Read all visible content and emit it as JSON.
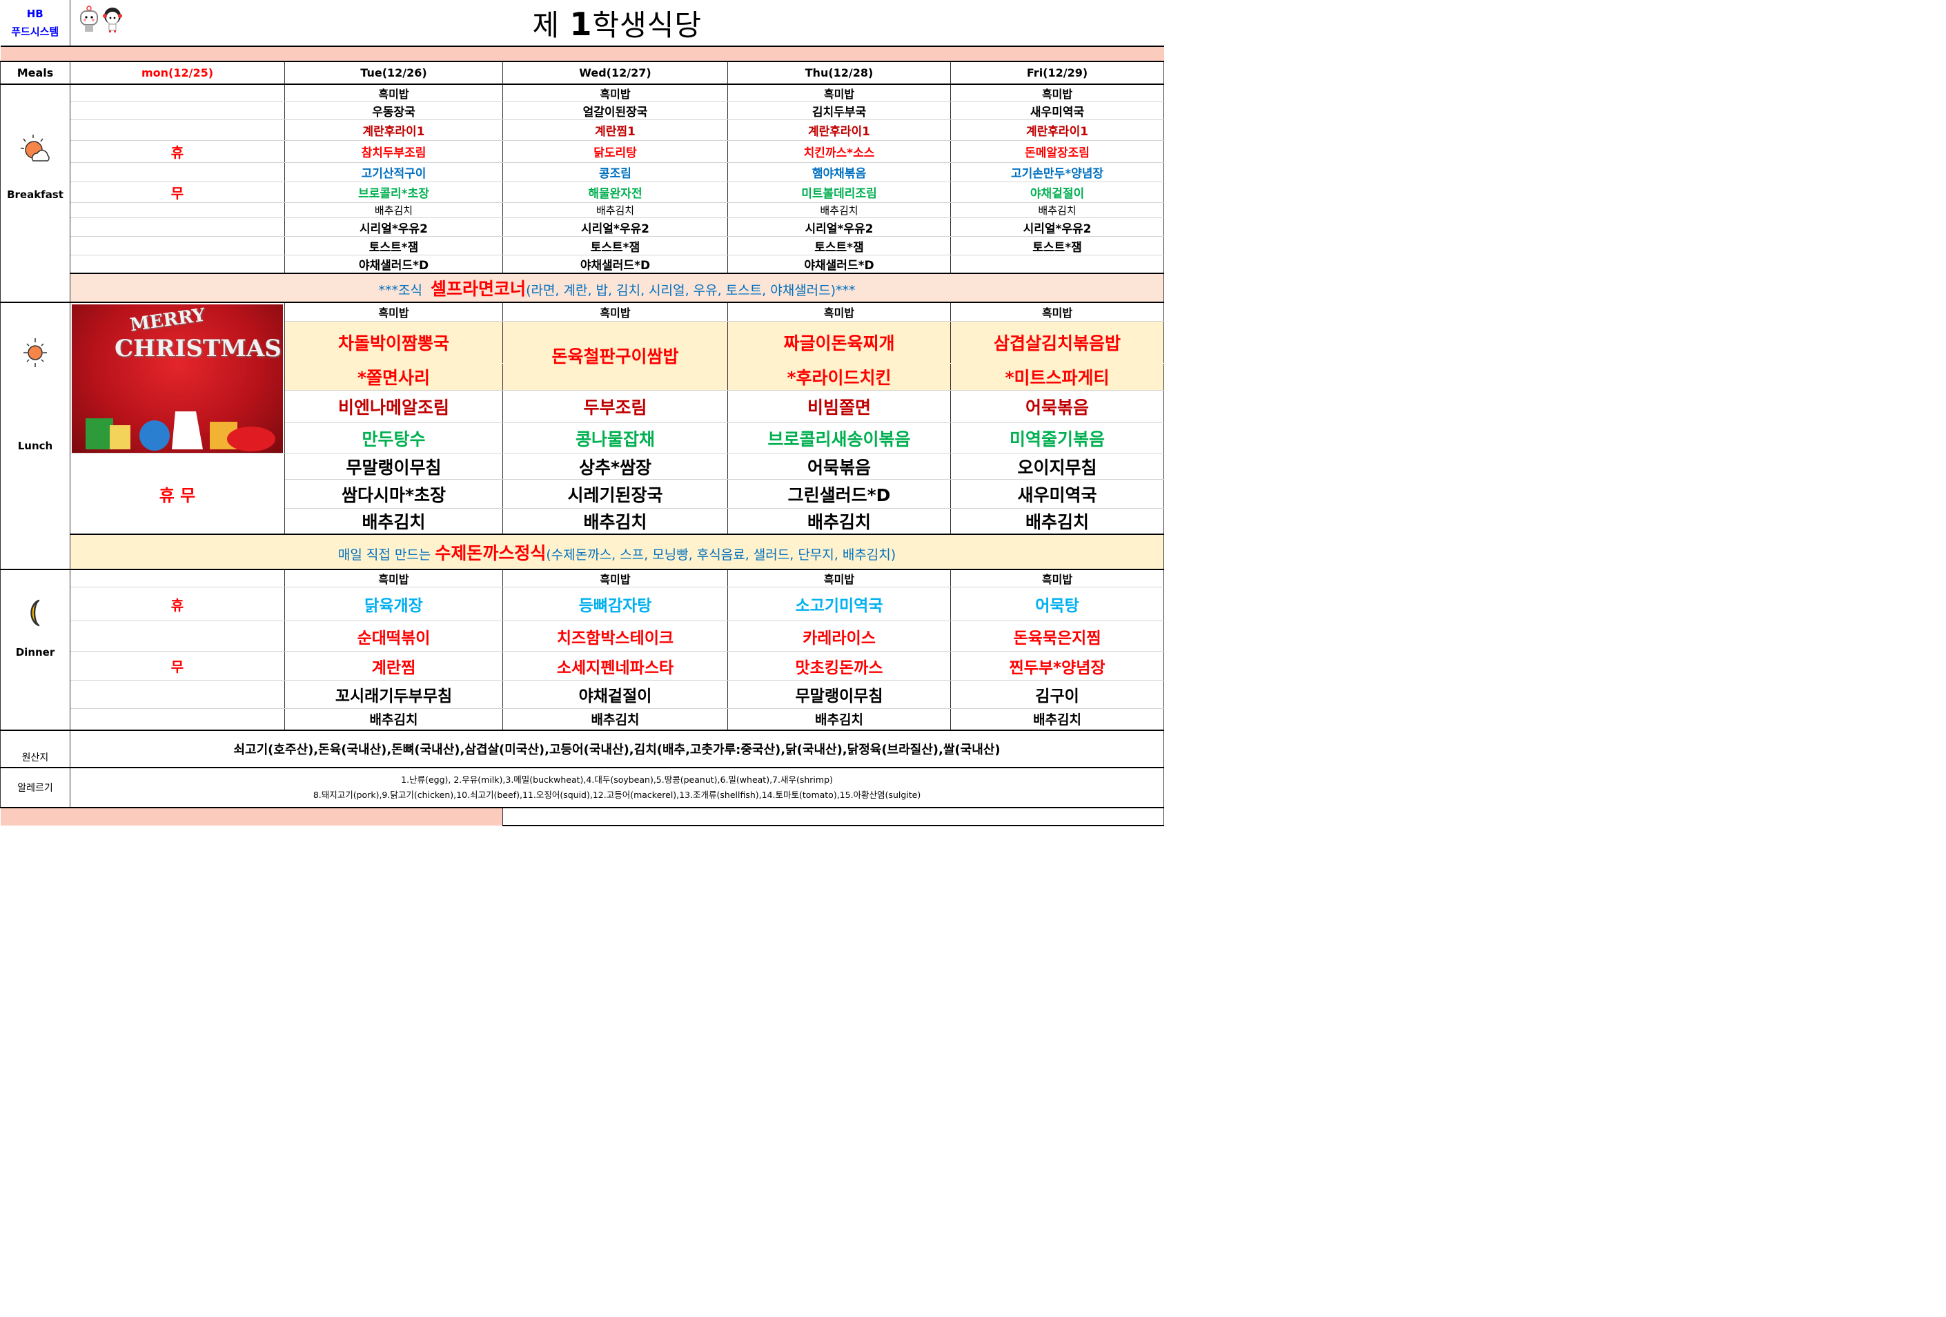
{
  "header": {
    "logo_line1": "HB",
    "logo_line2": "푸드시스템",
    "title_prefix": "제 ",
    "title_num": "1",
    "title_rest": "학생식당"
  },
  "columns": {
    "meals": "Meals",
    "days": [
      "mon(12/25)",
      "Tue(12/26)",
      "Wed(12/27)",
      "Thu(12/28)",
      "Fri(12/29)"
    ]
  },
  "meal_labels": {
    "breakfast": "Breakfast",
    "lunch": "Lunch",
    "dinner": "Dinner",
    "origin": "원산지",
    "allergy": "알레르기"
  },
  "closed": {
    "hyu": "휴",
    "mu": "무",
    "lunch": "휴 무"
  },
  "colors": {
    "red": "#FF0000",
    "dark_red": "#C00000",
    "blue": "#0070C0",
    "green": "#00B050",
    "cyan": "#00B0F0",
    "black": "#000000",
    "header_band": "#FBCBBE",
    "breakfast_band": "#FCE4D6",
    "cream": "#FFF2CC"
  },
  "icons": {
    "breakfast": "sun-behind-cloud-icon",
    "lunch": "sun-icon",
    "dinner": "crescent-moon-icon"
  },
  "breakfast": {
    "rows": [
      {
        "color": "#000000",
        "cls": "b-s",
        "items": [
          "흑미밥",
          "흑미밥",
          "흑미밥",
          "흑미밥"
        ]
      },
      {
        "color": "#000000",
        "cls": "b-m",
        "items": [
          "우동장국",
          "얼갈이된장국",
          "김치두부국",
          "새우미역국"
        ]
      },
      {
        "color": "#C00000",
        "cls": "b-m",
        "items": [
          "계란후라이1",
          "계란찜1",
          "계란후라이1",
          "계란후라이1"
        ]
      },
      {
        "color": "#FF0000",
        "cls": "b-m",
        "items": [
          "참치두부조림",
          "닭도리탕",
          "치킨까스*소스",
          "돈메알장조림"
        ]
      },
      {
        "color": "#0070C0",
        "cls": "b-m",
        "items": [
          "고기산적구이",
          "콩조림",
          "햄야채볶음",
          "고기손만두*양념장"
        ]
      },
      {
        "color": "#00B050",
        "cls": "b-m",
        "items": [
          "브로콜리*초장",
          "해물완자전",
          "미트볼데리조림",
          "야채겉절이"
        ]
      },
      {
        "color": "#000000",
        "cls": "b-light",
        "items": [
          "배추김치",
          "배추김치",
          "배추김치",
          "배추김치"
        ]
      },
      {
        "color": "#000000",
        "cls": "b-m",
        "items": [
          "시리얼*우유2",
          "시리얼*우유2",
          "시리얼*우유2",
          "시리얼*우유2"
        ]
      },
      {
        "color": "#000000",
        "cls": "b-m",
        "items": [
          "토스트*잼",
          "토스트*잼",
          "토스트*잼",
          "토스트*잼"
        ]
      },
      {
        "color": "#000000",
        "cls": "b-m",
        "items": [
          "야채샐러드*D",
          "야채샐러드*D",
          "야채샐러드*D",
          ""
        ]
      }
    ],
    "banner": {
      "prefix": "***조식  ",
      "highlight": "셀프라면코너",
      "suffix": "(라면, 계란, 밥, 김치, 시리얼, 우유, 토스트, 야채샐러드)***"
    }
  },
  "lunch": {
    "image_text": "Merry Christmas",
    "rice": [
      "흑미밥",
      "흑미밥",
      "흑미밥",
      "흑미밥"
    ],
    "main": {
      "top": [
        "차돌박이짬뽕국",
        "돈육철판구이쌈밥",
        "짜글이돈육찌개",
        "삼겹살김치볶음밥"
      ],
      "bottom": [
        "*쫄면사리",
        "",
        "*후라이드치킨",
        "*미트스파게티"
      ]
    },
    "rows": [
      {
        "color": "#C00000",
        "cls": "l-m",
        "items": [
          "비엔나메알조림",
          "두부조림",
          "비빔쫄면",
          "어묵볶음"
        ]
      },
      {
        "color": "#00B050",
        "cls": "l-m",
        "items": [
          "만두탕수",
          "콩나물잡채",
          "브로콜리새송이볶음",
          "미역줄기볶음"
        ]
      },
      {
        "color": "#000000",
        "cls": "l-m",
        "items": [
          "무말랭이무침",
          "상추*쌈장",
          "어묵볶음",
          "오이지무침"
        ]
      },
      {
        "color": "#000000",
        "cls": "l-m",
        "items": [
          "쌈다시마*초장",
          "시레기된장국",
          "그린샐러드*D",
          "새우미역국"
        ]
      },
      {
        "color": "#000000",
        "cls": "l-m",
        "items": [
          "배추김치",
          "배추김치",
          "배추김치",
          "배추김치"
        ]
      }
    ],
    "banner": {
      "prefix": "매일 직접 만드는 ",
      "highlight": "수제돈까스정식",
      "suffix": "(수제돈까스, 스프, 모닝빵, 후식음료, 샐러드, 단무지, 배추김치)"
    }
  },
  "dinner": {
    "rows": [
      {
        "color": "#000000",
        "cls": "d-s",
        "items": [
          "흑미밥",
          "흑미밥",
          "흑미밥",
          "흑미밥"
        ]
      },
      {
        "color": "#00B0F0",
        "cls": "d-m",
        "items": [
          "닭육개장",
          "등뼈감자탕",
          "소고기미역국",
          "어묵탕"
        ]
      },
      {
        "color": "#FF0000",
        "cls": "d-m",
        "items": [
          "순대떡볶이",
          "치즈함박스테이크",
          "카레라이스",
          "돈육묵은지찜"
        ]
      },
      {
        "color": "#FF0000",
        "cls": "d-m",
        "items": [
          "계란찜",
          "소세지펜네파스타",
          "맛초킹돈까스",
          "찐두부*양념장"
        ]
      },
      {
        "color": "#000000",
        "cls": "d-m",
        "items": [
          "꼬시래기두부무침",
          "야채겉절이",
          "무말랭이무침",
          "김구이"
        ]
      },
      {
        "color": "#000000",
        "cls": "d-k",
        "items": [
          "배추김치",
          "배추김치",
          "배추김치",
          "배추김치"
        ]
      }
    ]
  },
  "origin": "쇠고기(호주산),돈육(국내산),돈뼈(국내산),삼겹살(미국산),고등어(국내산),김치(배추,고춧가루:중국산),닭(국내산),닭정육(브라질산),쌀(국내산)",
  "allergy": {
    "line1": "1.난류(egg), 2.우유(milk),3.메밀(buckwheat),4.대두(soybean),5.땅콩(peanut),6.밀(wheat),7.새우(shrimp)",
    "line2": "8.돼지고기(pork),9.닭고기(chicken),10.쇠고기(beef),11.오징어(squid),12.고등어(mackerel),13.조개류(shellfish),14.토마토(tomato),15.아황산염(sulgite)"
  }
}
